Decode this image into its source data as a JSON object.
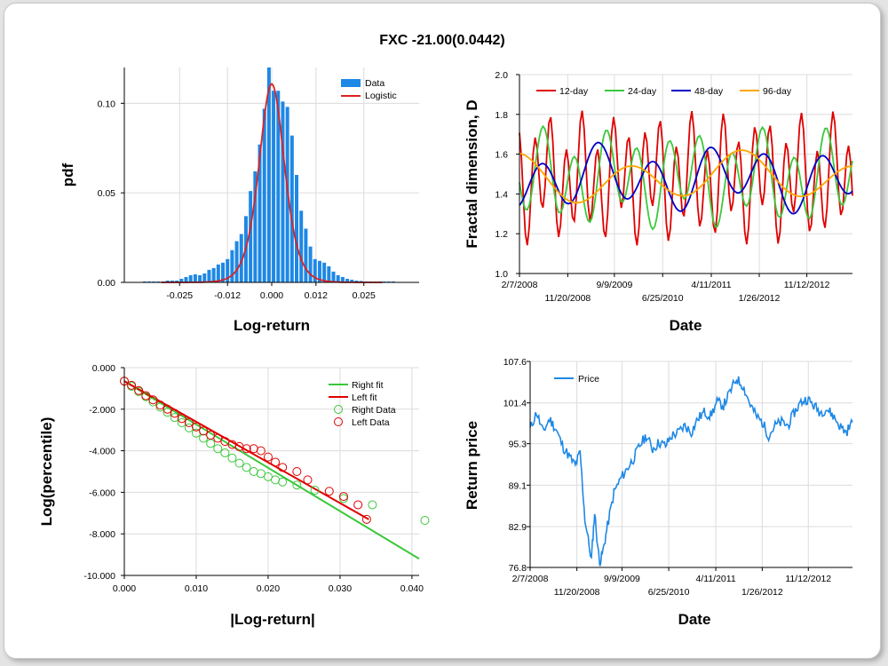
{
  "figure": {
    "title": "FXC -21.00(0.0442)"
  },
  "chart_data": [
    {
      "id": "histogram",
      "type": "bar",
      "xlabel": "Log-return",
      "ylabel": "pdf",
      "xlim": [
        -0.04,
        0.04
      ],
      "ylim": [
        0,
        0.12
      ],
      "xticks": [
        -0.025,
        -0.012,
        0.0,
        0.012,
        0.025
      ],
      "xtick_labels": [
        "-0.025",
        "-0.012",
        "0.000",
        "0.012",
        "0.025"
      ],
      "yticks": [
        0,
        0.05,
        0.1
      ],
      "ytick_labels": [
        "0.00",
        "0.05",
        "0.10"
      ],
      "grid": true,
      "legend": "top-right",
      "series": [
        {
          "name": "Data",
          "type": "bar",
          "color": "#1e88e5",
          "bin_width": 0.00125,
          "bin_centers": [
            -0.0345,
            -0.03325,
            -0.032,
            -0.03075,
            -0.0295,
            -0.02825,
            -0.027,
            -0.02575,
            -0.0245,
            -0.02325,
            -0.022,
            -0.02075,
            -0.0195,
            -0.01825,
            -0.017,
            -0.01575,
            -0.0145,
            -0.01325,
            -0.012,
            -0.01075,
            -0.0095,
            -0.00825,
            -0.007,
            -0.00575,
            -0.0045,
            -0.00325,
            -0.002,
            -0.00075,
            0.0005,
            0.00175,
            0.003,
            0.00425,
            0.0055,
            0.00675,
            0.008,
            0.00925,
            0.0105,
            0.01175,
            0.013,
            0.01425,
            0.0155,
            0.01675,
            0.018,
            0.01925,
            0.0205,
            0.02175,
            0.023,
            0.02425,
            0.0255,
            0.02675,
            0.028,
            0.02925,
            0.0305,
            0.03175,
            0.033
          ],
          "values": [
            0.0005,
            0.0005,
            0.0005,
            0.0005,
            0.0005,
            0.001,
            0.001,
            0.001,
            0.002,
            0.003,
            0.004,
            0.0045,
            0.004,
            0.005,
            0.007,
            0.008,
            0.01,
            0.011,
            0.013,
            0.018,
            0.023,
            0.027,
            0.037,
            0.051,
            0.062,
            0.077,
            0.097,
            0.122,
            0.107,
            0.107,
            0.101,
            0.098,
            0.082,
            0.06,
            0.04,
            0.03,
            0.02,
            0.013,
            0.012,
            0.011,
            0.009,
            0.006,
            0.004,
            0.003,
            0.002,
            0.0015,
            0.001,
            0.0008,
            0.0005,
            0.0005,
            0.0005,
            0.0005,
            0.0005,
            0.0005,
            0.0005
          ]
        },
        {
          "name": "Logistic",
          "type": "line",
          "color": "#e02020",
          "loc": 0.0,
          "scale": 0.0023
        }
      ]
    },
    {
      "id": "fractal",
      "type": "line",
      "xlabel": "Date",
      "ylabel": "Fractal dimension, D",
      "ylim": [
        1.0,
        2.0
      ],
      "yticks": [
        1.0,
        1.2,
        1.4,
        1.6,
        1.8,
        2.0
      ],
      "ytick_labels": [
        "1.0",
        "1.2",
        "1.4",
        "1.6",
        "1.8",
        "2.0"
      ],
      "date_ticks_top": [
        "2/7/2008",
        "9/9/2009",
        "4/11/2011",
        "11/12/2012"
      ],
      "date_ticks_bottom": [
        "11/20/2008",
        "6/25/2010",
        "1/26/2012"
      ],
      "grid": true,
      "legend": "top",
      "series": [
        {
          "name": "12-day",
          "color": "#e00000"
        },
        {
          "name": "24-day",
          "color": "#3cc83c"
        },
        {
          "name": "48-day",
          "color": "#0000c8"
        },
        {
          "name": "96-day",
          "color": "#ffa500"
        }
      ]
    },
    {
      "id": "tails",
      "type": "scatter",
      "xlabel": "|Log-return|",
      "ylabel": "Log(percentile)",
      "xlim": [
        0.0,
        0.041
      ],
      "ylim": [
        -10.0,
        0.0
      ],
      "xticks": [
        0.0,
        0.01,
        0.02,
        0.03,
        0.04
      ],
      "xtick_labels": [
        "0.000",
        "0.010",
        "0.020",
        "0.030",
        "0.040"
      ],
      "yticks": [
        0,
        -2,
        -4,
        -6,
        -8,
        -10
      ],
      "ytick_labels": [
        "0.000",
        "-2.000",
        "-4.000",
        "-6.000",
        "-8.000",
        "-10.000"
      ],
      "grid": true,
      "legend": "top-right",
      "series": [
        {
          "name": "Right fit",
          "type": "line",
          "color": "#3cc83c",
          "x": [
            0.0,
            0.041
          ],
          "y": [
            -0.65,
            -9.2
          ]
        },
        {
          "name": "Left fit",
          "type": "line",
          "color": "#e00000",
          "x": [
            0.0,
            0.034
          ],
          "y": [
            -0.65,
            -7.3
          ]
        },
        {
          "name": "Right Data",
          "type": "scatter",
          "color": "#3cc83c",
          "x": [
            0.0,
            0.001,
            0.002,
            0.003,
            0.004,
            0.005,
            0.006,
            0.007,
            0.008,
            0.009,
            0.01,
            0.011,
            0.012,
            0.013,
            0.014,
            0.015,
            0.016,
            0.017,
            0.018,
            0.019,
            0.02,
            0.021,
            0.022,
            0.024,
            0.0265,
            0.0305,
            0.0345,
            0.0418
          ],
          "y": [
            -0.65,
            -0.9,
            -1.15,
            -1.4,
            -1.65,
            -1.9,
            -2.15,
            -2.4,
            -2.65,
            -2.9,
            -3.15,
            -3.4,
            -3.65,
            -3.9,
            -4.1,
            -4.35,
            -4.6,
            -4.8,
            -5.0,
            -5.1,
            -5.25,
            -5.4,
            -5.5,
            -5.65,
            -5.9,
            -6.3,
            -6.6,
            -7.35
          ]
        },
        {
          "name": "Left Data",
          "type": "scatter",
          "color": "#e00000",
          "x": [
            0.0,
            0.001,
            0.002,
            0.003,
            0.004,
            0.005,
            0.006,
            0.007,
            0.008,
            0.009,
            0.01,
            0.011,
            0.012,
            0.013,
            0.014,
            0.015,
            0.016,
            0.017,
            0.018,
            0.019,
            0.02,
            0.021,
            0.022,
            0.024,
            0.0255,
            0.0285,
            0.0305,
            0.0325,
            0.0337
          ],
          "y": [
            -0.65,
            -0.85,
            -1.1,
            -1.35,
            -1.55,
            -1.8,
            -2.0,
            -2.2,
            -2.45,
            -2.65,
            -2.85,
            -3.05,
            -3.25,
            -3.4,
            -3.55,
            -3.7,
            -3.8,
            -3.9,
            -3.9,
            -4.0,
            -4.3,
            -4.55,
            -4.8,
            -5.0,
            -5.4,
            -5.95,
            -6.2,
            -6.6,
            -7.3
          ]
        }
      ]
    },
    {
      "id": "price",
      "type": "line",
      "xlabel": "Date",
      "ylabel": "Return price",
      "ylim": [
        76.8,
        107.6
      ],
      "yticks": [
        76.8,
        82.9,
        89.1,
        95.3,
        101.4,
        107.6
      ],
      "ytick_labels": [
        "76.8",
        "82.9",
        "89.1",
        "95.3",
        "101.4",
        "107.6"
      ],
      "date_ticks_top": [
        "2/7/2008",
        "9/9/2009",
        "4/11/2011",
        "11/12/2012"
      ],
      "date_ticks_bottom": [
        "11/20/2008",
        "6/25/2010",
        "1/26/2012"
      ],
      "grid": true,
      "legend": "top-left",
      "series": [
        {
          "name": "Price",
          "color": "#1e88e5",
          "t": [
            0.0,
            0.02,
            0.04,
            0.06,
            0.08,
            0.1,
            0.12,
            0.14,
            0.155,
            0.17,
            0.19,
            0.2,
            0.215,
            0.225,
            0.24,
            0.26,
            0.28,
            0.3,
            0.32,
            0.34,
            0.36,
            0.38,
            0.4,
            0.42,
            0.44,
            0.46,
            0.48,
            0.5,
            0.52,
            0.54,
            0.56,
            0.58,
            0.6,
            0.62,
            0.64,
            0.66,
            0.68,
            0.7,
            0.72,
            0.74,
            0.76,
            0.78,
            0.8,
            0.82,
            0.84,
            0.86,
            0.88,
            0.9,
            0.92,
            0.94,
            0.96,
            0.98,
            1.0
          ],
          "values": [
            97.5,
            100.0,
            97.0,
            99.0,
            97.5,
            95.0,
            93.5,
            92.0,
            94.0,
            84.0,
            78.0,
            85.0,
            77.5,
            79.0,
            83.0,
            88.0,
            90.0,
            91.5,
            93.0,
            95.0,
            96.5,
            94.5,
            95.5,
            95.0,
            96.5,
            97.0,
            98.0,
            97.0,
            99.0,
            100.0,
            99.5,
            101.5,
            101.0,
            103.0,
            105.0,
            104.0,
            101.5,
            99.5,
            98.5,
            96.5,
            98.0,
            98.5,
            98.0,
            100.0,
            101.5,
            102.0,
            101.0,
            100.0,
            100.5,
            99.5,
            98.0,
            97.0,
            98.5
          ]
        }
      ]
    }
  ]
}
